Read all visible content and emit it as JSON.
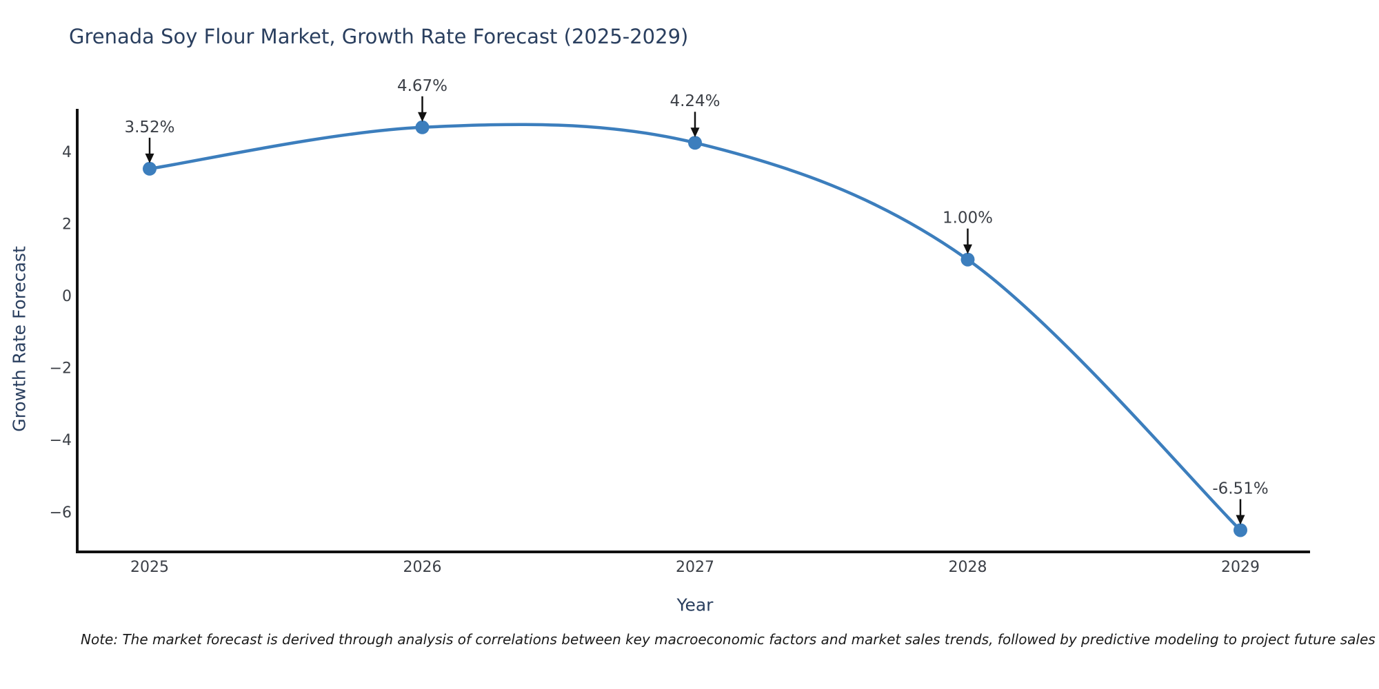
{
  "title": "Grenada Soy Flour Market, Growth Rate Forecast (2025-2029)",
  "note": "Note: The market forecast is derived through analysis of correlations between key macroeconomic factors and market sales trends, followed by predictive modeling to project future sales",
  "chart_data": {
    "type": "line",
    "title": "Grenada Soy Flour Market, Growth Rate Forecast (2025-2029)",
    "xlabel": "Year",
    "ylabel": "Growth Rate Forecast",
    "x": [
      2025,
      2026,
      2027,
      2028,
      2029
    ],
    "values": [
      3.52,
      4.67,
      4.24,
      1.0,
      -6.51
    ],
    "series_name": "Growth Rate Forecast",
    "point_labels": [
      "3.52%",
      "4.67%",
      "4.24%",
      "1.00%",
      "-6.51%"
    ],
    "x_tick_labels": [
      "2025",
      "2026",
      "2027",
      "2028",
      "2029"
    ],
    "y_ticks": [
      4,
      2,
      0,
      -2,
      -4,
      -6
    ],
    "y_tick_labels": [
      "4",
      "2",
      "0",
      "−2",
      "−4",
      "−6"
    ],
    "ylim": [
      -7.1,
      5.2
    ],
    "grid": false,
    "legend": "none",
    "marker_style": "circle",
    "annotation_style": "value label above point with downward black arrow",
    "colors": {
      "line": "#3c7ebd",
      "marker": "#3c7ebd",
      "arrow": "#111111",
      "spine": "#111111",
      "tick_label": "#3b3f46",
      "annotation_label": "#3b3f46",
      "title": "#2a3f5f",
      "axis_label": "#2a3f5f",
      "background": "#ffffff"
    }
  }
}
